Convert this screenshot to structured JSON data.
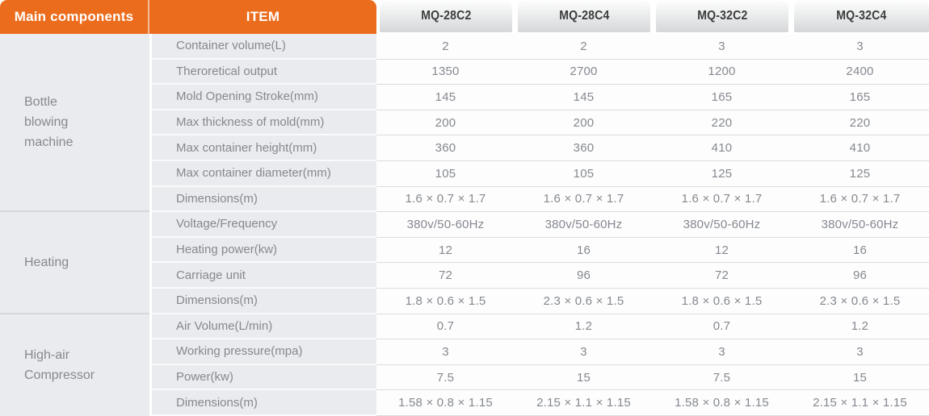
{
  "header": {
    "main_components_label": "Main components",
    "item_label": "ITEM",
    "models": [
      "MQ-28C2",
      "MQ-28C4",
      "MQ-32C2",
      "MQ-32C4"
    ]
  },
  "groups": [
    {
      "name": "Bottle blowing machine",
      "name_lines": [
        "Bottle",
        "blowing",
        "machine"
      ],
      "rows": [
        {
          "item": "Container volume(L)",
          "values": [
            "2",
            "2",
            "3",
            "3"
          ]
        },
        {
          "item": "Theroretical output",
          "values": [
            "1350",
            "2700",
            "1200",
            "2400"
          ]
        },
        {
          "item": "Mold Opening Stroke(mm)",
          "values": [
            "145",
            "145",
            "165",
            "165"
          ]
        },
        {
          "item": "Max thickness of mold(mm)",
          "values": [
            "200",
            "200",
            "220",
            "220"
          ]
        },
        {
          "item": "Max container height(mm)",
          "values": [
            "360",
            "360",
            "410",
            "410"
          ]
        },
        {
          "item": "Max container diameter(mm)",
          "values": [
            "105",
            "105",
            "125",
            "125"
          ]
        },
        {
          "item": "Dimensions(m)",
          "values": [
            "1.6 × 0.7 × 1.7",
            "1.6 × 0.7 × 1.7",
            "1.6 × 0.7 × 1.7",
            "1.6 × 0.7 × 1.7"
          ]
        }
      ]
    },
    {
      "name": "Heating",
      "name_lines": [
        "Heating"
      ],
      "rows": [
        {
          "item": "Voltage/Frequency",
          "values": [
            "380v/50-60Hz",
            "380v/50-60Hz",
            "380v/50-60Hz",
            "380v/50-60Hz"
          ]
        },
        {
          "item": "Heating power(kw)",
          "values": [
            "12",
            "16",
            "12",
            "16"
          ]
        },
        {
          "item": "Carriage unit",
          "values": [
            "72",
            "96",
            "72",
            "96"
          ]
        },
        {
          "item": "Dimensions(m)",
          "values": [
            "1.8 × 0.6 × 1.5",
            "2.3 × 0.6 × 1.5",
            "1.8 × 0.6 × 1.5",
            "2.3 × 0.6 × 1.5"
          ]
        }
      ]
    },
    {
      "name": "High-air Compressor",
      "name_lines": [
        "High-air",
        "Compressor"
      ],
      "rows": [
        {
          "item": "Air Volume(L/min)",
          "values": [
            "0.7",
            "1.2",
            "0.7",
            "1.2"
          ]
        },
        {
          "item": "Working pressure(mpa)",
          "values": [
            "3",
            "3",
            "3",
            "3"
          ]
        },
        {
          "item": "Power(kw)",
          "values": [
            "7.5",
            "15",
            "7.5",
            "15"
          ]
        },
        {
          "item": "Dimensions(m)",
          "values": [
            "1.58 × 0.8 × 1.15",
            "2.15 × 1.1 × 1.15",
            "1.58 × 0.8 × 1.15",
            "2.15 × 1.1 × 1.15"
          ]
        }
      ]
    }
  ],
  "colors": {
    "header_orange": "#EC6C1D",
    "tab_gradient_top": "#fefefe",
    "tab_gradient_bottom": "#d6d7d8",
    "tab_text": "#3c3c3e",
    "cell_text": "#85898e",
    "label_background": "#e9ebee",
    "row_separator": "#d9dcdf"
  }
}
